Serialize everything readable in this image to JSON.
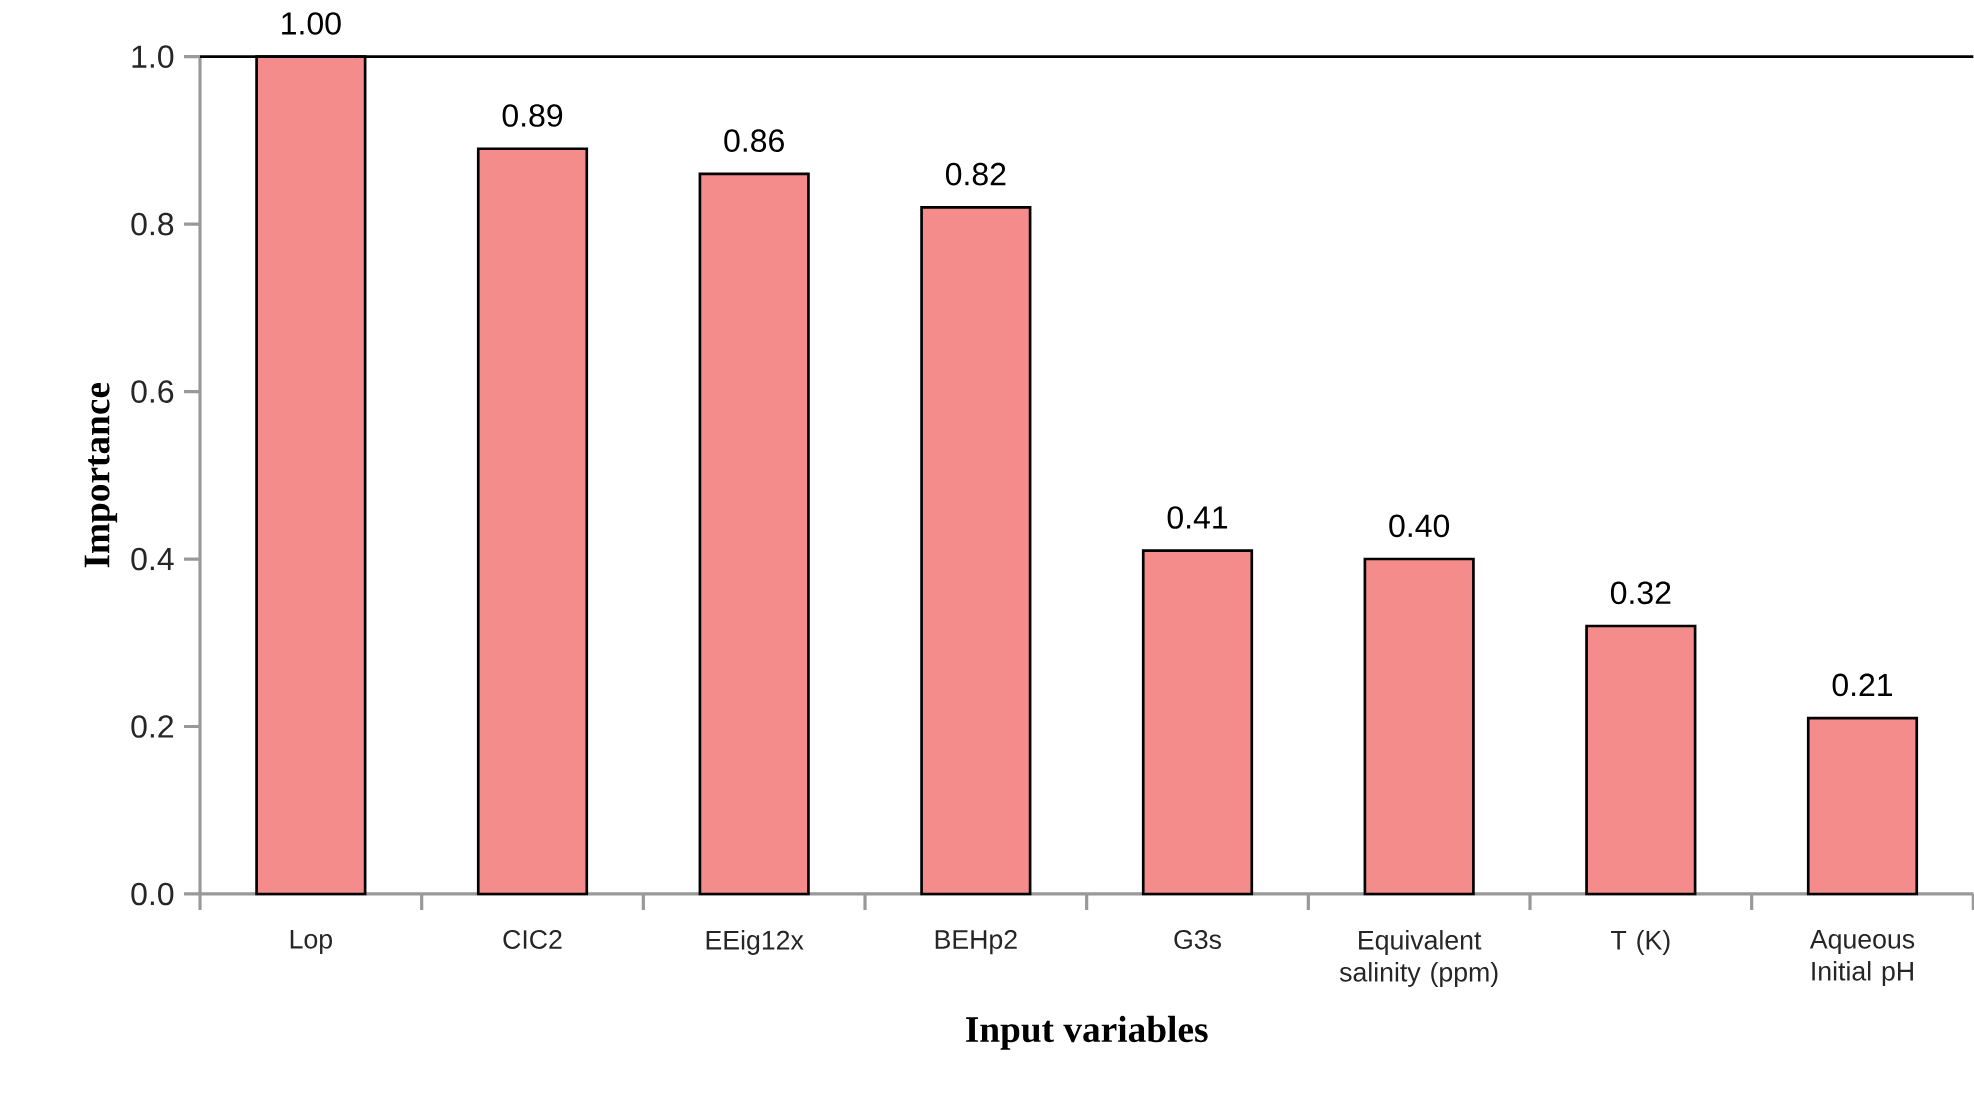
{
  "chart_data": {
    "type": "bar",
    "xlabel": "Input variables",
    "ylabel": "Importance",
    "categories": [
      "Lop",
      "CIC2",
      "EEig12x",
      "BEHp2",
      "G3s",
      "Equivalent salinity (ppm)",
      "T (K)",
      "Aqueous Initial  pH"
    ],
    "values": [
      1.0,
      0.89,
      0.86,
      0.82,
      0.41,
      0.4,
      0.32,
      0.21
    ],
    "value_labels": [
      "1.00",
      "0.89",
      "0.86",
      "0.82",
      "0.41",
      "0.40",
      "0.32",
      "0.21"
    ],
    "color": "#f48c8c",
    "ylim": [
      0,
      1
    ],
    "yticks": [
      {
        "value": 0,
        "label": "0.0"
      },
      {
        "value": 0.2,
        "label": "0.2"
      },
      {
        "value": 0.4,
        "label": "0.4"
      },
      {
        "value": 0.6,
        "label": "0.6"
      },
      {
        "value": 0.8,
        "label": "0.8"
      },
      {
        "value": 1,
        "label": "1.0"
      }
    ]
  }
}
